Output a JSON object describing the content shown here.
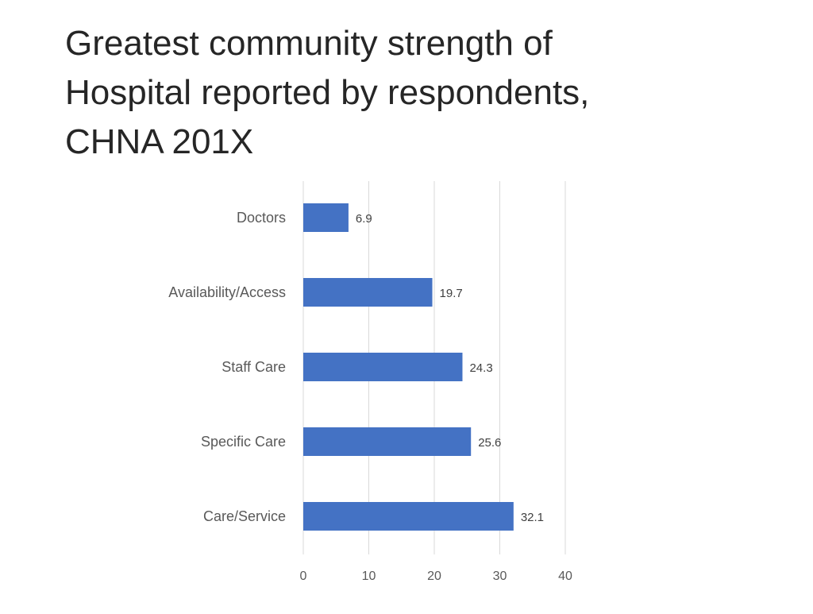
{
  "title_lines": [
    "Greatest community strength of",
    "Hospital reported by respondents,",
    "CHNA 201X"
  ],
  "colors": {
    "bar": "#4472C4",
    "grid": "#D9D9D9",
    "label_text": "#595959",
    "value_text": "#404040",
    "title_text": "#262626"
  },
  "chart_data": {
    "type": "bar",
    "orientation": "horizontal",
    "title": "Greatest community strength of Hospital reported by respondents, CHNA 201X",
    "categories": [
      "Doctors",
      "Availability/Access",
      "Staff Care",
      "Specific Care",
      "Care/Service"
    ],
    "values": [
      6.9,
      19.7,
      24.3,
      25.6,
      32.1
    ],
    "value_labels": [
      "6.9",
      "19.7",
      "24.3",
      "25.6",
      "32.1"
    ],
    "xlim": [
      0,
      40
    ],
    "xticks": [
      "0",
      "10",
      "20",
      "30",
      "40"
    ],
    "xlabel": "",
    "ylabel": "",
    "grid": true,
    "legend": "none"
  }
}
